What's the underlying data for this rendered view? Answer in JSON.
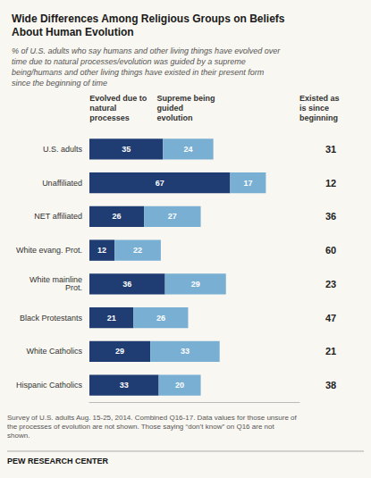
{
  "chart_data": {
    "type": "bar",
    "orientation": "horizontal",
    "stacked": true,
    "data_labels": true,
    "tick_labels": "y",
    "title": "Wide Differences Among Religious Groups on Beliefs\nAbout Human Evolution",
    "subtitle": "% of U.S. adults who say humans and other living things have evolved over\ntime due to natural processes/evolution was guided by a supreme\nbeing/humans and other living things have existed in their present form\nsince the beginning of time",
    "annotations": [
      "Survey of U.S. adults Aug. 15-25, 2014. Combined Q16-17. Data values for those unsure of\nthe processes of evolution are not shown. Those saying “don’t know” on Q16 are not\nshown.",
      "PEW RESEARCH CENTER"
    ],
    "categories": [
      "U.S. adults",
      "Unaffiliated",
      "NET affiliated",
      "White evang. Prot.",
      "White mainline\nProt.",
      "Black Protestants",
      "White Catholics",
      "Hispanic Catholics"
    ],
    "series": [
      {
        "name": "Evolved due to\nnatural\nprocesses",
        "color": "#1f3d72",
        "values": [
          35,
          67,
          26,
          12,
          36,
          21,
          29,
          33
        ]
      },
      {
        "name": "Supreme being\nguided\nevolution",
        "color": "#7aafd4",
        "values": [
          24,
          17,
          27,
          22,
          29,
          26,
          33,
          20
        ]
      },
      {
        "name": "Existed as\nis since\nbeginning",
        "type": "text",
        "values": [
          31,
          12,
          36,
          60,
          23,
          47,
          21,
          38
        ]
      }
    ],
    "xlim": [
      0,
      100
    ]
  }
}
